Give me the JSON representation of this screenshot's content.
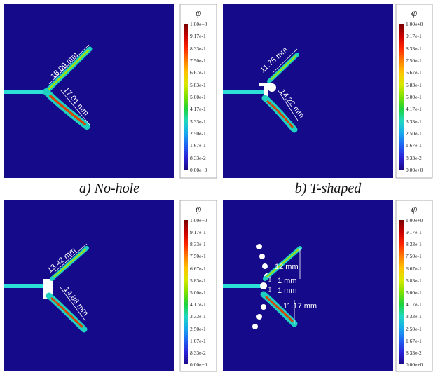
{
  "legend": {
    "symbol": "φ",
    "ticks": [
      "1.00e+0",
      "9.17e-1",
      "8.33e-1",
      "7.50e-1",
      "6.67e-1",
      "5.83e-1",
      "5.00e-1",
      "4.17e-1",
      "3.33e-1",
      "2.50e-1",
      "1.67e-1",
      "8.33e-2",
      "0.00e+0"
    ],
    "colors": [
      "#7a0000",
      "#c80000",
      "#ff2400",
      "#ff7a00",
      "#ffc400",
      "#d8e800",
      "#7ee000",
      "#1ed33c",
      "#1fd8c0",
      "#18a8ee",
      "#1f63f2",
      "#2b22d8",
      "#1a0a86"
    ]
  },
  "panels": [
    {
      "caption": "a) No-hole",
      "labels": {
        "top": "18.09 mm",
        "bottom": "17.01 mm"
      }
    },
    {
      "caption": "b) T-shaped",
      "labels": {
        "top": "11.75 mm",
        "bottom": "14.22 mm"
      }
    },
    {
      "caption": "",
      "labels": {
        "top": "13.42 mm",
        "bottom": "14.88 mm"
      }
    },
    {
      "caption": "",
      "labels": {
        "top": "12 mm",
        "gap1": "1 mm",
        "gap2": "1 mm",
        "bottom": "11.17 mm"
      }
    }
  ]
}
